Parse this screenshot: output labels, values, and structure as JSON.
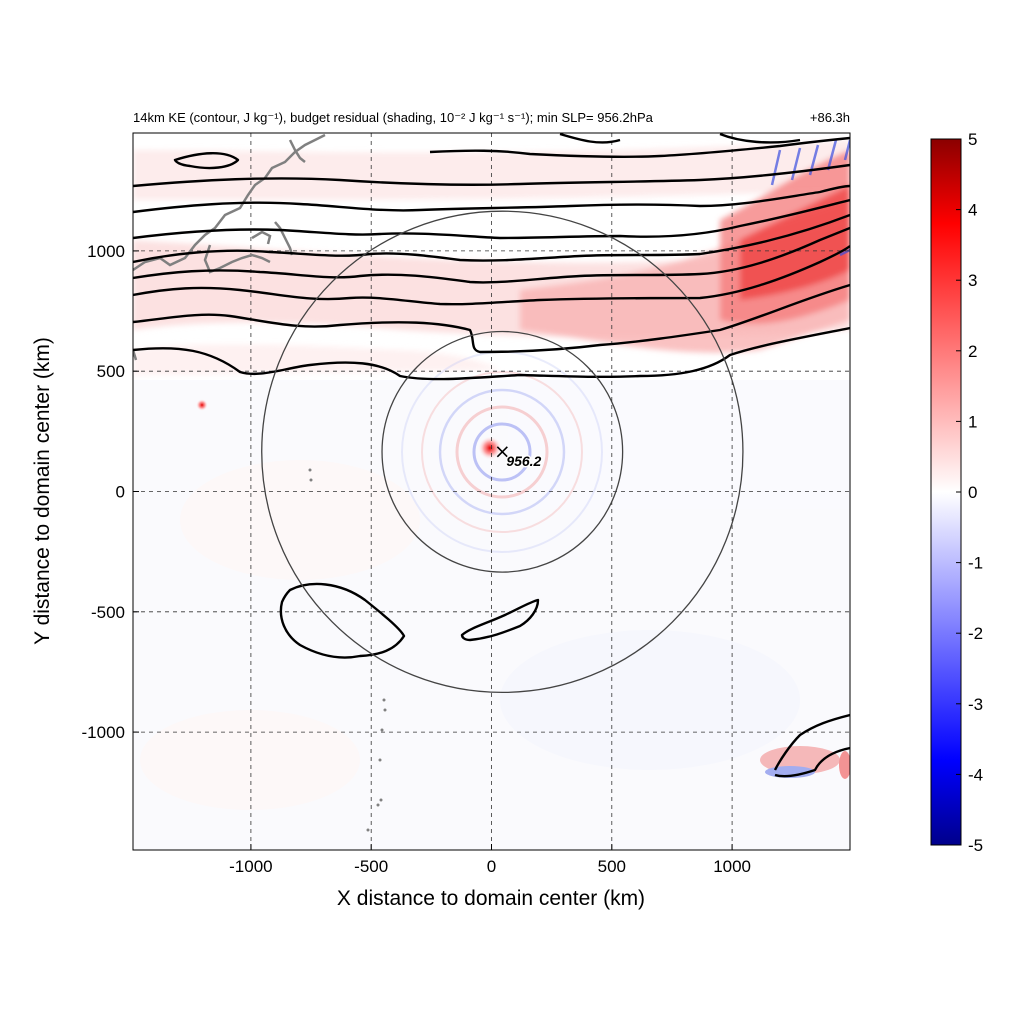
{
  "chart_data": {
    "type": "heatmap",
    "title_left": "14km KE (contour, J kg⁻¹), budget residual (shading, 10⁻² J kg⁻¹ s⁻¹); min SLP= 956.2hPa",
    "title_right": "+86.3h",
    "xlabel": "X distance to domain center (km)",
    "ylabel": "Y distance to domain center (km)",
    "xlim": [
      -1490,
      1490
    ],
    "ylim": [
      -1490,
      1490
    ],
    "x_ticks": [
      -1000,
      -500,
      0,
      500,
      1000
    ],
    "y_ticks": [
      -1000,
      -500,
      0,
      500,
      1000
    ],
    "grid": true,
    "colorbar": {
      "min": -5,
      "max": 5,
      "ticks": [
        5,
        4,
        3,
        2,
        1,
        0,
        -1,
        -2,
        -3,
        -4,
        -5
      ],
      "colormap": "blue-white-red",
      "colors": [
        "#00008b",
        "#0000ff",
        "#ffffff",
        "#ff0000",
        "#8b0000"
      ]
    },
    "storm_center": {
      "x": 45,
      "y": 165,
      "min_slp_label": "956.2"
    },
    "range_circles_km": [
      500,
      1000
    ],
    "shading_features": [
      {
        "region": "upper-right jet band",
        "sign": "positive",
        "max_value": 4
      },
      {
        "region": "storm core",
        "sign": "positive",
        "max_value": 4
      },
      {
        "region": "upper-right jet band",
        "sign": "negative",
        "min_value": -2
      }
    ],
    "contour_color": "#000000",
    "coastline_color": "#808080"
  }
}
